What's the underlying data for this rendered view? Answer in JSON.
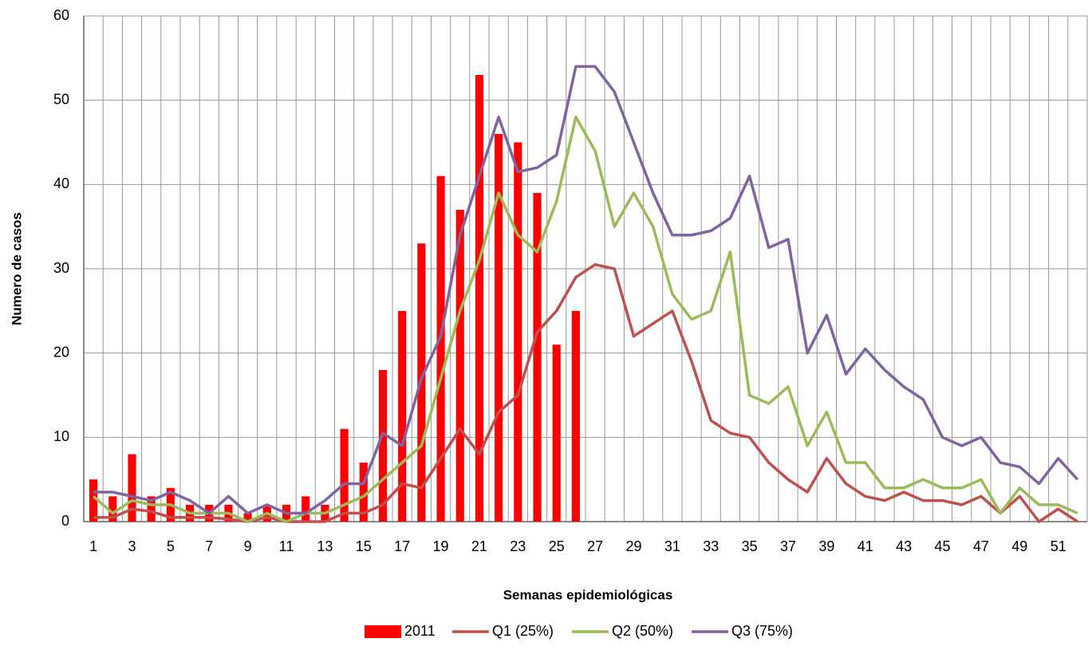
{
  "chart_data": {
    "type": "combo",
    "x_label": "Semanas epidemiológicas",
    "y_label": "Numero de casos",
    "categories": [
      1,
      null,
      3,
      null,
      5,
      null,
      7,
      null,
      9,
      null,
      11,
      null,
      13,
      null,
      15,
      null,
      17,
      null,
      19,
      null,
      21,
      null,
      23,
      null,
      25,
      null,
      27,
      null,
      29,
      null,
      31,
      null,
      33,
      null,
      35,
      null,
      37,
      null,
      39,
      null,
      41,
      null,
      43,
      null,
      45,
      null,
      47,
      null,
      49,
      null,
      51,
      null
    ],
    "ylim": [
      0,
      60
    ],
    "yticks": [
      0,
      10,
      20,
      30,
      40,
      50,
      60
    ],
    "grid": true,
    "legend": "bottom",
    "series": [
      {
        "name": "2011",
        "type": "bar",
        "color": "#ff0000",
        "values": [
          5,
          3,
          8,
          3,
          4,
          2,
          2,
          2,
          1,
          2,
          2,
          3,
          2,
          11,
          7,
          18,
          25,
          33,
          41,
          37,
          53,
          46,
          45,
          39,
          21,
          25,
          null,
          null,
          null,
          null,
          null,
          null,
          null,
          null,
          null,
          null,
          null,
          null,
          null,
          null,
          null,
          null,
          null,
          null,
          null,
          null,
          null,
          null,
          null,
          null,
          null,
          null
        ]
      },
      {
        "name": "Q1 (25%)",
        "type": "line",
        "color": "#c0504d",
        "values": [
          0.5,
          0.5,
          1.5,
          1.2,
          0.5,
          0.5,
          0.5,
          0.3,
          0,
          0.5,
          0,
          0,
          0,
          1,
          1,
          2,
          4.5,
          4,
          7.5,
          11,
          8,
          13,
          15,
          22.5,
          25,
          29,
          30.5,
          30,
          22,
          23.5,
          25,
          19,
          12,
          10.5,
          10,
          7,
          5,
          3.5,
          7.5,
          4.5,
          3,
          2.5,
          3.5,
          2.5,
          2.5,
          2,
          3,
          1,
          3,
          0,
          1.5,
          0
        ]
      },
      {
        "name": "Q2 (50%)",
        "type": "line",
        "color": "#9bbb59",
        "values": [
          3,
          1,
          2.5,
          2,
          2,
          1,
          1,
          1,
          0,
          1,
          0,
          1,
          1,
          2,
          3,
          5,
          7,
          9,
          17,
          25,
          31,
          39,
          34,
          32,
          38,
          48,
          44,
          35,
          39,
          35,
          27,
          24,
          25,
          32,
          15,
          14,
          16,
          9,
          13,
          7,
          7,
          4,
          4,
          5,
          4,
          4,
          5,
          1,
          4,
          2,
          2,
          1
        ]
      },
      {
        "name": "Q3 (75%)",
        "type": "line",
        "color": "#8064a2",
        "values": [
          3.5,
          3.5,
          3,
          2.5,
          3.5,
          2.5,
          1,
          3,
          1,
          2,
          1,
          1,
          2.5,
          4.5,
          4.5,
          10.5,
          9,
          17,
          22,
          34,
          41,
          48,
          41.5,
          42,
          43.5,
          54,
          54,
          51,
          45,
          39,
          34,
          34,
          34.5,
          36,
          41,
          32.5,
          33.5,
          20,
          24.5,
          17.5,
          20.5,
          18,
          16,
          14.5,
          10,
          9,
          10,
          7,
          6.5,
          4.5,
          7.5,
          5
        ]
      }
    ]
  }
}
